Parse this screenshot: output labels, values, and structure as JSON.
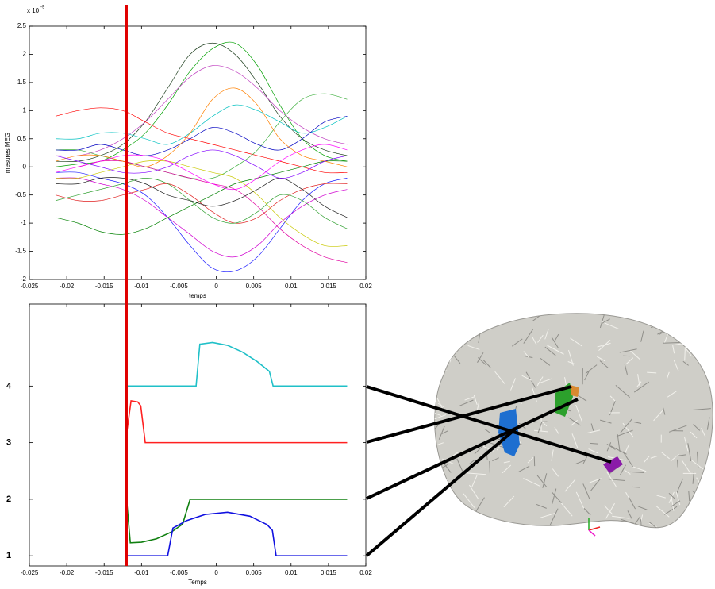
{
  "chart_data": [
    {
      "type": "line",
      "xlabel": "temps",
      "ylabel": "mesures MEG",
      "y_scale_label": "x 10",
      "y_scale_exponent": "-9",
      "xlim": [
        -0.025,
        0.02
      ],
      "xticks": [
        -0.025,
        -0.02,
        -0.015,
        -0.01,
        -0.005,
        0,
        0.005,
        0.01,
        0.015,
        0.02
      ],
      "ylim": [
        -2,
        2.5
      ],
      "yticks": [
        -2,
        -1.5,
        -1,
        -0.5,
        0,
        0.5,
        1,
        1.5,
        2,
        2.5
      ],
      "cursor": -0.012,
      "x": [
        -0.0215,
        -0.0185,
        -0.0155,
        -0.0125,
        -0.0095,
        -0.0065,
        -0.0035,
        -0.0005,
        0.0025,
        0.0055,
        0.0085,
        0.0115,
        0.0145,
        0.0175
      ],
      "series": [
        {
          "color": "#00a000",
          "values": [
            0.0,
            0.05,
            0.1,
            0.3,
            0.6,
            1.1,
            1.7,
            2.1,
            2.2,
            1.8,
            1.1,
            0.5,
            0.2,
            0.1
          ]
        },
        {
          "color": "#204020",
          "values": [
            0.1,
            0.1,
            0.2,
            0.4,
            0.8,
            1.4,
            2.0,
            2.2,
            2.0,
            1.5,
            0.9,
            0.5,
            0.3,
            0.2
          ]
        },
        {
          "color": "#2020ff",
          "values": [
            -0.1,
            -0.1,
            -0.2,
            -0.3,
            -0.5,
            -0.9,
            -1.4,
            -1.8,
            -1.85,
            -1.6,
            -1.1,
            -0.6,
            -0.3,
            -0.2
          ]
        },
        {
          "color": "#d000d0",
          "values": [
            -0.2,
            -0.2,
            -0.3,
            -0.4,
            -0.6,
            -0.9,
            -1.2,
            -1.5,
            -1.6,
            -1.4,
            -1.0,
            -0.7,
            -0.5,
            -0.4
          ]
        },
        {
          "color": "#c040c0",
          "values": [
            0.2,
            0.2,
            0.3,
            0.5,
            0.8,
            1.2,
            1.6,
            1.8,
            1.7,
            1.4,
            1.0,
            0.7,
            0.5,
            0.4
          ]
        },
        {
          "color": "#ff0000",
          "values": [
            0.9,
            1.0,
            1.05,
            1.0,
            0.8,
            0.6,
            0.5,
            0.4,
            0.3,
            0.2,
            0.1,
            0.0,
            -0.1,
            -0.1
          ]
        },
        {
          "color": "#008000",
          "values": [
            -0.9,
            -1.0,
            -1.15,
            -1.2,
            -1.1,
            -0.9,
            -0.7,
            -0.5,
            -0.3,
            -0.2,
            -0.1,
            0.0,
            0.1,
            0.1
          ]
        },
        {
          "color": "#40b040",
          "values": [
            0.3,
            0.3,
            0.2,
            0.1,
            0.0,
            -0.1,
            -0.2,
            -0.2,
            0.0,
            0.3,
            0.8,
            1.2,
            1.3,
            1.2
          ]
        },
        {
          "color": "#c8c800",
          "values": [
            -0.2,
            -0.2,
            -0.1,
            0.0,
            0.1,
            0.1,
            0.0,
            -0.1,
            -0.2,
            -0.5,
            -0.9,
            -1.2,
            -1.4,
            -1.4
          ]
        },
        {
          "color": "#e000a0",
          "values": [
            0.0,
            0.0,
            0.1,
            0.1,
            0.0,
            -0.1,
            -0.2,
            -0.3,
            -0.4,
            -0.7,
            -1.1,
            -1.4,
            -1.6,
            -1.7
          ]
        },
        {
          "color": "#00c0c0",
          "values": [
            0.5,
            0.5,
            0.6,
            0.6,
            0.5,
            0.4,
            0.6,
            0.9,
            1.1,
            1.0,
            0.8,
            0.6,
            0.7,
            0.9
          ]
        },
        {
          "color": "#e02020",
          "values": [
            -0.5,
            -0.6,
            -0.6,
            -0.5,
            -0.4,
            -0.3,
            -0.5,
            -0.8,
            -1.0,
            -0.9,
            -0.6,
            -0.4,
            -0.3,
            -0.3
          ]
        },
        {
          "color": "#0000c0",
          "values": [
            0.3,
            0.3,
            0.4,
            0.3,
            0.2,
            0.3,
            0.5,
            0.7,
            0.6,
            0.4,
            0.3,
            0.5,
            0.8,
            0.9
          ]
        },
        {
          "color": "#202020",
          "values": [
            -0.3,
            -0.3,
            -0.2,
            -0.2,
            -0.3,
            -0.5,
            -0.6,
            -0.7,
            -0.6,
            -0.4,
            -0.2,
            -0.4,
            -0.7,
            -0.9
          ]
        },
        {
          "color": "#ff8000",
          "values": [
            0.1,
            0.2,
            0.2,
            0.1,
            0.0,
            0.2,
            0.6,
            1.2,
            1.4,
            1.1,
            0.5,
            0.2,
            0.1,
            0.0
          ]
        },
        {
          "color": "#30a030",
          "values": [
            -0.6,
            -0.5,
            -0.4,
            -0.3,
            -0.2,
            -0.3,
            -0.6,
            -0.9,
            -1.0,
            -0.8,
            -0.5,
            -0.6,
            -0.9,
            -1.1
          ]
        },
        {
          "color": "#8000ff",
          "values": [
            0.2,
            0.1,
            0.0,
            -0.1,
            -0.1,
            0.0,
            0.2,
            0.3,
            0.2,
            0.0,
            -0.2,
            -0.1,
            0.1,
            0.2
          ]
        },
        {
          "color": "#ff00ff",
          "values": [
            -0.1,
            0.0,
            0.1,
            0.2,
            0.2,
            0.1,
            -0.1,
            -0.3,
            -0.4,
            -0.2,
            0.1,
            0.3,
            0.4,
            0.3
          ]
        }
      ]
    },
    {
      "type": "line",
      "xlabel": "Temps",
      "xlim": [
        -0.025,
        0.02
      ],
      "xticks": [
        -0.025,
        -0.02,
        -0.015,
        -0.01,
        -0.005,
        0,
        0.005,
        0.01,
        0.015,
        0.02
      ],
      "ylim": [
        0.82,
        5.45
      ],
      "yticks": [
        1,
        2,
        3,
        4
      ],
      "series": [
        {
          "color": "#20c0c8",
          "x": [
            -0.012,
            -0.0027,
            -0.0022,
            -0.0005,
            0.0015,
            0.0035,
            0.0055,
            0.0071,
            0.0076,
            0.0175
          ],
          "values": [
            4,
            4,
            4.74,
            4.77,
            4.72,
            4.6,
            4.43,
            4.26,
            4,
            4
          ]
        },
        {
          "color": "#ff2020",
          "x": [
            -0.012,
            -0.0114,
            -0.0105,
            -0.0101,
            -0.0095,
            0.0175
          ],
          "values": [
            3.15,
            3.74,
            3.72,
            3.65,
            3,
            3
          ]
        },
        {
          "color": "#108010",
          "x": [
            -0.012,
            -0.0115,
            -0.01,
            -0.008,
            -0.006,
            -0.0045,
            -0.0035,
            0.0175
          ],
          "values": [
            2,
            1.23,
            1.24,
            1.3,
            1.42,
            1.56,
            2,
            2
          ]
        },
        {
          "color": "#1010e0",
          "x": [
            -0.012,
            -0.0065,
            -0.0058,
            -0.004,
            -0.0015,
            0.0015,
            0.0045,
            0.0068,
            0.0075,
            0.008,
            0.0175
          ],
          "values": [
            1,
            1,
            1.49,
            1.62,
            1.73,
            1.77,
            1.7,
            1.55,
            1.45,
            1,
            1
          ]
        }
      ]
    }
  ]
}
